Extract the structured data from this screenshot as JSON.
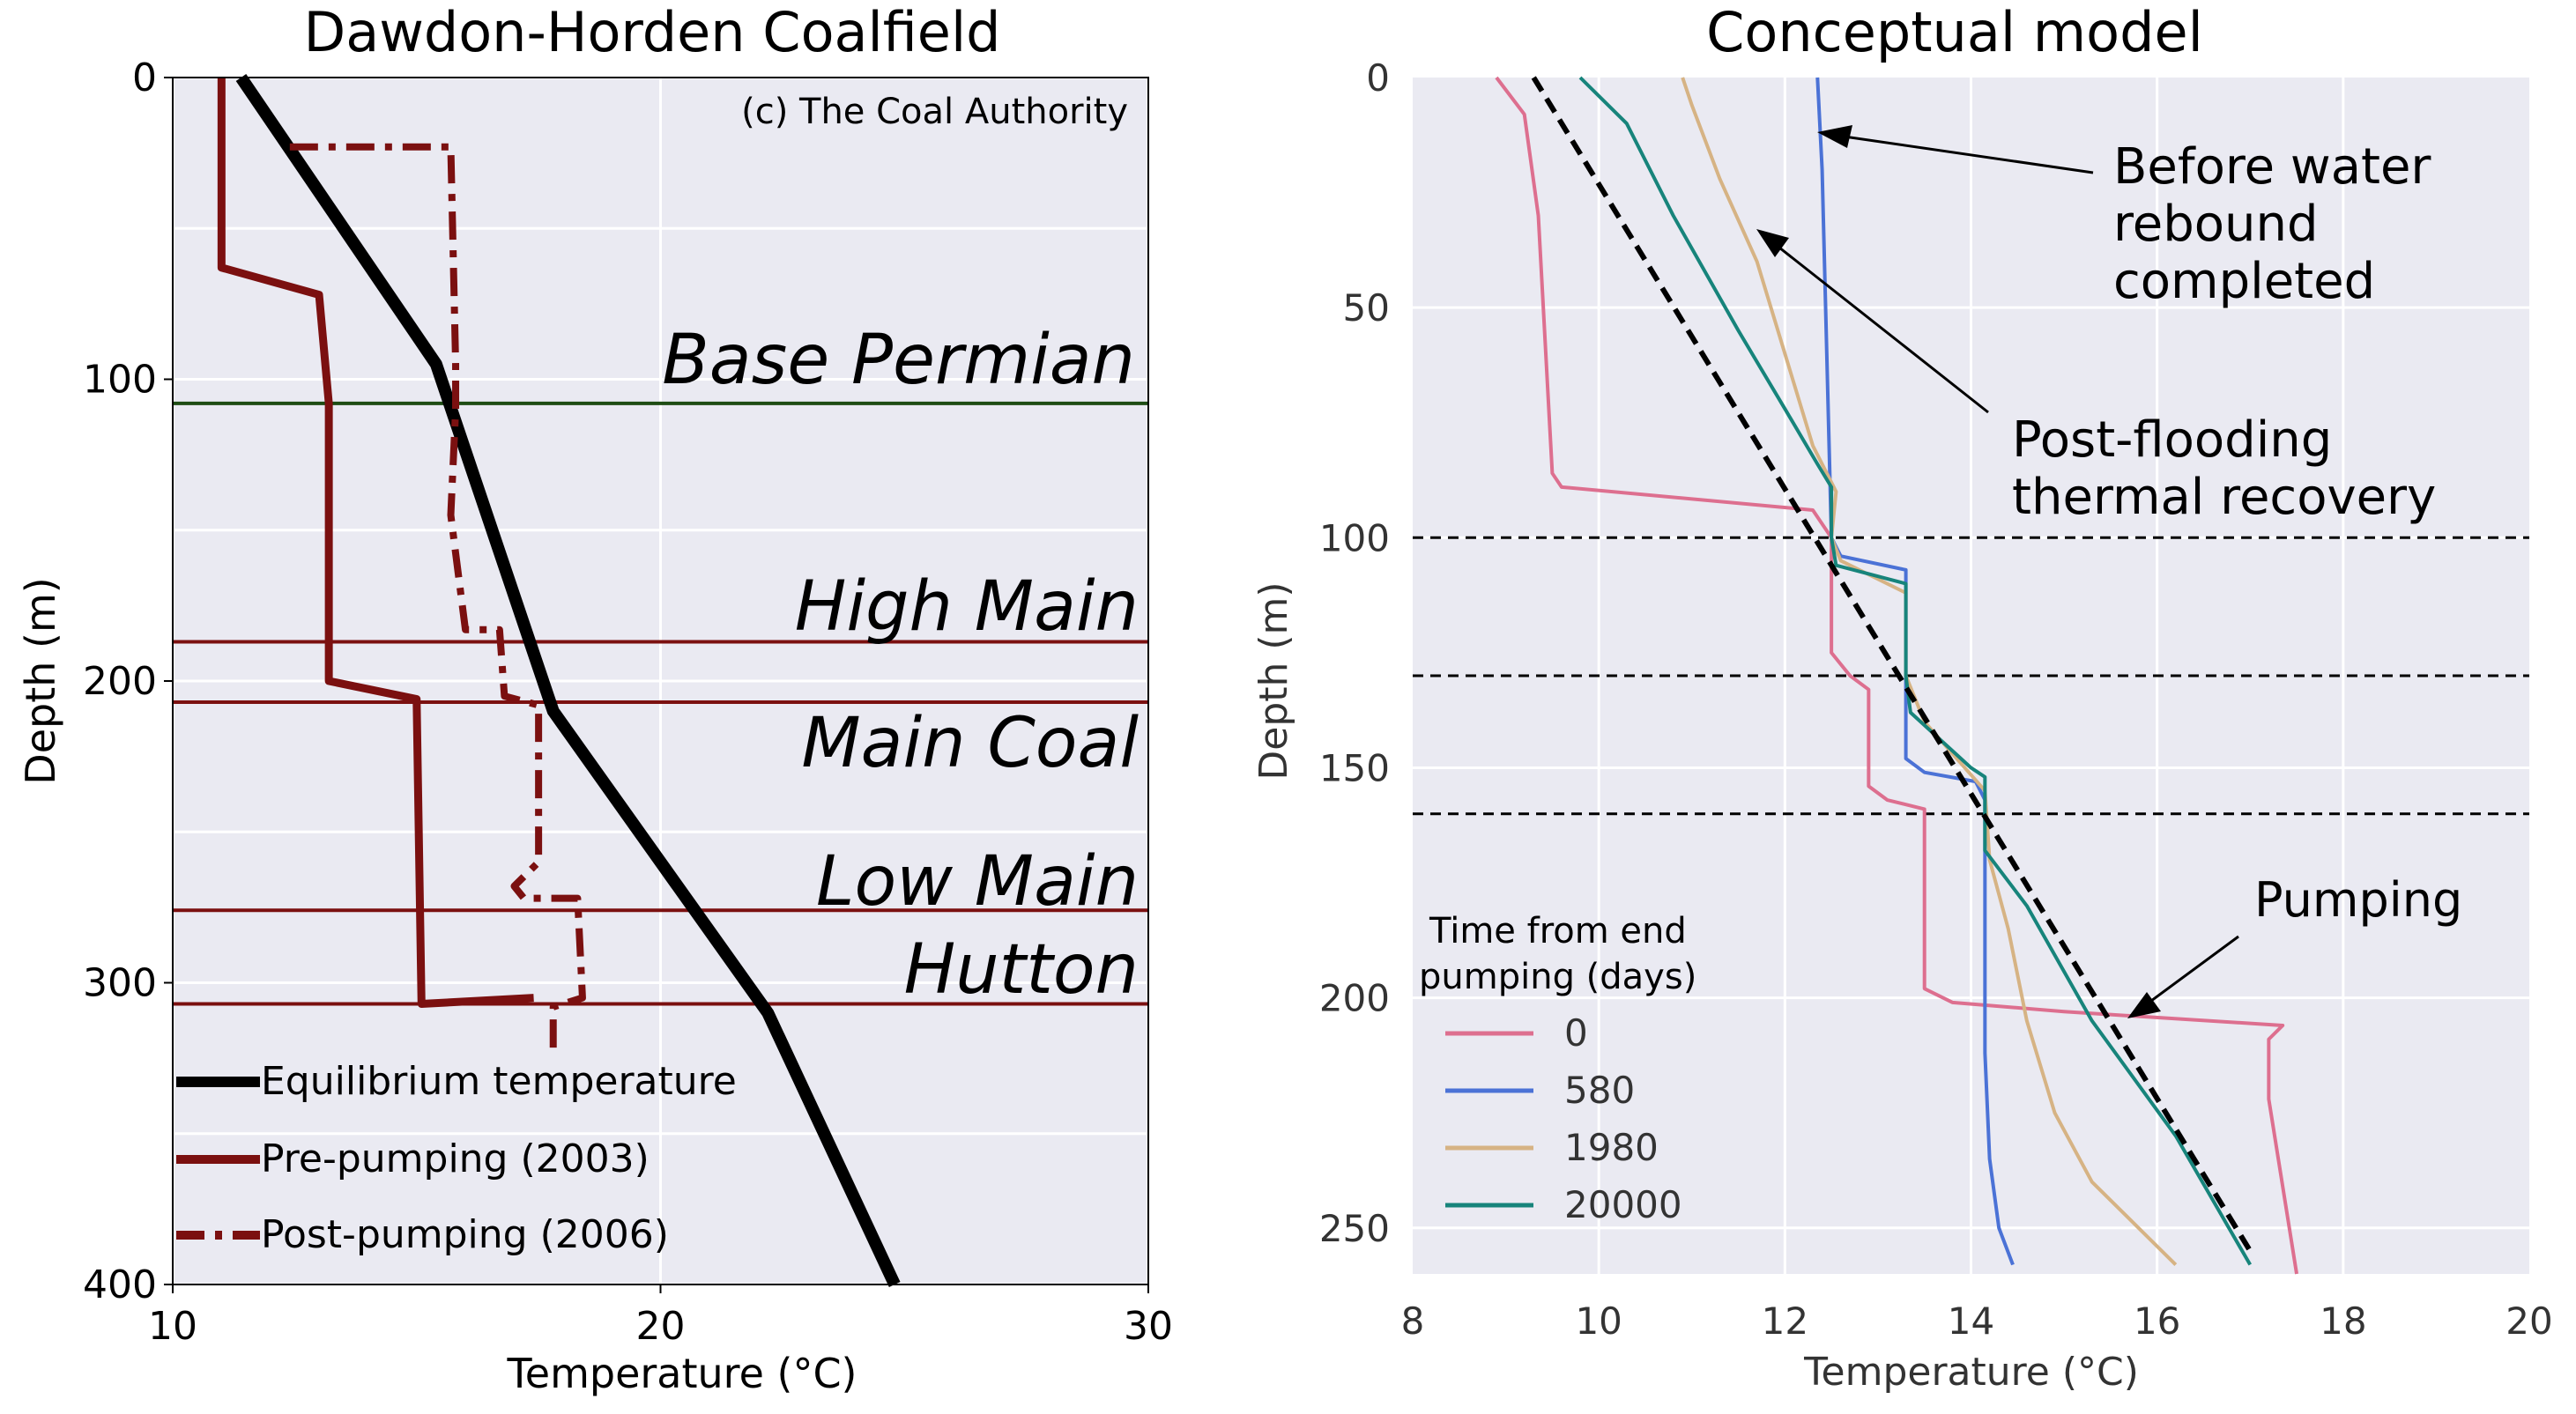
{
  "chart_data": [
    {
      "type": "line",
      "title": "Dawdon-Horden Coalfield",
      "xlabel": "Temperature (°C)",
      "ylabel": "Depth (m)",
      "xlim": [
        10,
        30
      ],
      "ylim": [
        400,
        0
      ],
      "x_ticks": [
        "10",
        "20",
        "30"
      ],
      "y_ticks": [
        "0",
        "100",
        "200",
        "300",
        "400"
      ],
      "grid": true,
      "annotation": "(c) The Coal Authority",
      "legend_position": "bottom-left",
      "horizons": [
        {
          "name": "Base Permian",
          "depth": 108,
          "color": "#1e4d14"
        },
        {
          "name": "High Main",
          "depth": 187,
          "color": "#7b1010"
        },
        {
          "name": "Main Coal",
          "depth": 207,
          "color": "#7b1010"
        },
        {
          "name": "Low Main",
          "depth": 276,
          "color": "#7b1010"
        },
        {
          "name": "Hutton",
          "depth": 307,
          "color": "#7b1010"
        }
      ],
      "series": [
        {
          "name": "Equilibrium temperature",
          "color": "#000000",
          "style": "solid",
          "points": [
            [
              11.4,
              0
            ],
            [
              15.4,
              95
            ],
            [
              17.8,
              210
            ],
            [
              22.2,
              310
            ],
            [
              24.8,
              400
            ]
          ]
        },
        {
          "name": "Pre-pumping (2003)",
          "color": "#7b1010",
          "style": "solid",
          "points": [
            [
              11.0,
              0
            ],
            [
              11.0,
              63
            ],
            [
              13.0,
              72
            ],
            [
              13.2,
              108
            ],
            [
              13.2,
              200
            ],
            [
              15.0,
              206
            ],
            [
              15.1,
              307
            ],
            [
              17.4,
              305
            ]
          ]
        },
        {
          "name": "Post-pumping (2006)",
          "color": "#7b1010",
          "style": "dashdot",
          "points": [
            [
              12.4,
              23
            ],
            [
              15.7,
              23
            ],
            [
              15.8,
              95
            ],
            [
              15.8,
              110
            ],
            [
              15.7,
              145
            ],
            [
              16.0,
              183
            ],
            [
              16.7,
              183
            ],
            [
              16.8,
              205
            ],
            [
              17.5,
              208
            ],
            [
              17.5,
              260
            ],
            [
              17.0,
              268
            ],
            [
              17.2,
              272
            ],
            [
              18.3,
              272
            ],
            [
              18.4,
              305
            ],
            [
              17.8,
              308
            ],
            [
              17.8,
              325
            ]
          ]
        }
      ]
    },
    {
      "type": "line",
      "title": "Conceptual model",
      "xlabel": "Temperature (°C)",
      "ylabel": "Depth (m)",
      "xlim": [
        8,
        20
      ],
      "ylim": [
        260,
        0
      ],
      "x_ticks": [
        "8",
        "10",
        "12",
        "14",
        "16",
        "18",
        "20"
      ],
      "y_ticks": [
        "0",
        "50",
        "100",
        "150",
        "200",
        "250"
      ],
      "grid": true,
      "legend_title": "Time from end pumping (days)",
      "legend_position": "bottom-left",
      "dashed_lines": [
        100,
        130,
        160
      ],
      "equilibrium_line": {
        "color": "#000000",
        "style": "dashed",
        "points": [
          [
            9.3,
            0
          ],
          [
            17.0,
            255
          ]
        ]
      },
      "annotations": [
        {
          "text": "Before water rebound completed"
        },
        {
          "text": "Post-flooding thermal recovery"
        },
        {
          "text": "Pumping"
        }
      ],
      "series": [
        {
          "name": "0",
          "color": "#dd6f8f",
          "points": [
            [
              8.9,
              0
            ],
            [
              9.2,
              8
            ],
            [
              9.35,
              30
            ],
            [
              9.5,
              86
            ],
            [
              9.6,
              89
            ],
            [
              12.3,
              94
            ],
            [
              12.5,
              100
            ],
            [
              12.5,
              125
            ],
            [
              12.7,
              130
            ],
            [
              12.9,
              133
            ],
            [
              12.9,
              154
            ],
            [
              13.1,
              157
            ],
            [
              13.5,
              159
            ],
            [
              13.5,
              198
            ],
            [
              13.8,
              201
            ],
            [
              15.0,
              203
            ],
            [
              17.35,
              206
            ],
            [
              17.2,
              209
            ],
            [
              17.2,
              222
            ],
            [
              17.5,
              260
            ]
          ]
        },
        {
          "name": "580",
          "color": "#4b72d6",
          "points": [
            [
              12.35,
              0
            ],
            [
              12.4,
              20
            ],
            [
              12.45,
              60
            ],
            [
              12.5,
              100
            ],
            [
              12.6,
              104
            ],
            [
              13.3,
              107
            ],
            [
              13.3,
              148
            ],
            [
              13.5,
              151
            ],
            [
              14.05,
              153
            ],
            [
              14.15,
              157
            ],
            [
              14.15,
              212
            ],
            [
              14.2,
              235
            ],
            [
              14.3,
              250
            ],
            [
              14.45,
              258
            ]
          ]
        },
        {
          "name": "1980",
          "color": "#d6b384",
          "points": [
            [
              10.9,
              0
            ],
            [
              11.0,
              6
            ],
            [
              11.3,
              22
            ],
            [
              11.7,
              40
            ],
            [
              12.0,
              60
            ],
            [
              12.3,
              80
            ],
            [
              12.55,
              90
            ],
            [
              12.5,
              100
            ],
            [
              12.6,
              105
            ],
            [
              13.3,
              112
            ],
            [
              13.3,
              130
            ],
            [
              13.5,
              140
            ],
            [
              14.15,
              155
            ],
            [
              14.2,
              170
            ],
            [
              14.4,
              185
            ],
            [
              14.6,
              205
            ],
            [
              14.9,
              225
            ],
            [
              15.3,
              240
            ],
            [
              16.2,
              258
            ]
          ]
        },
        {
          "name": "20000",
          "color": "#17847b",
          "points": [
            [
              9.8,
              0
            ],
            [
              10.3,
              10
            ],
            [
              10.8,
              30
            ],
            [
              11.5,
              55
            ],
            [
              12.0,
              72
            ],
            [
              12.35,
              84
            ],
            [
              12.5,
              89
            ],
            [
              12.5,
              100
            ],
            [
              12.55,
              106
            ],
            [
              13.3,
              110
            ],
            [
              13.3,
              130
            ],
            [
              13.35,
              138
            ],
            [
              14.0,
              150
            ],
            [
              14.15,
              152
            ],
            [
              14.15,
              168
            ],
            [
              14.6,
              180
            ],
            [
              15.3,
              205
            ],
            [
              16.2,
              230
            ],
            [
              17.0,
              258
            ]
          ]
        }
      ]
    }
  ]
}
